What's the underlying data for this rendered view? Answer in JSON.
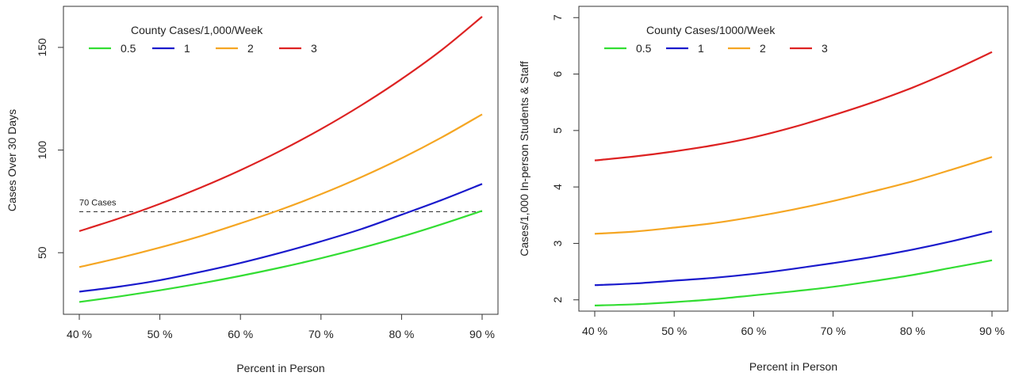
{
  "chart_data": [
    {
      "type": "line",
      "xlabel": "Percent in Person",
      "ylabel": "Cases Over 30 Days",
      "x": [
        40,
        45,
        50,
        55,
        60,
        65,
        70,
        75,
        80,
        85,
        90
      ],
      "x_tick_values": [
        40,
        50,
        60,
        70,
        80,
        90
      ],
      "x_tick_labels": [
        "40 %",
        "50 %",
        "60 %",
        "70 %",
        "80 %",
        "90 %"
      ],
      "xlim": [
        40,
        90
      ],
      "y_tick_values": [
        50,
        100,
        150
      ],
      "y_tick_labels": [
        "50",
        "100",
        "150"
      ],
      "ylim": [
        20,
        170
      ],
      "legend": {
        "title": "County Cases/1,000/Week",
        "placement": "top-left"
      },
      "series": [
        {
          "name": "0.5",
          "color": "#33dd33",
          "values": [
            26,
            28.7,
            31.7,
            35,
            38.7,
            42.8,
            47.3,
            52.3,
            57.8,
            63.9,
            70.4
          ]
        },
        {
          "name": "1",
          "color": "#1a1acc",
          "values": [
            31,
            33.5,
            36.6,
            40.6,
            45,
            50,
            55.5,
            61.5,
            68.5,
            75.7,
            83.5
          ]
        },
        {
          "name": "2",
          "color": "#f5a623",
          "values": [
            43,
            47.5,
            52.5,
            58,
            64.3,
            71,
            78.5,
            86.8,
            96,
            106.2,
            117.4
          ]
        },
        {
          "name": "3",
          "color": "#dd2222",
          "values": [
            60.5,
            66.8,
            73.8,
            81.6,
            90.2,
            99.7,
            110.2,
            121.8,
            134.6,
            148.8,
            165
          ]
        }
      ],
      "reference_line": {
        "y": 70,
        "label": "70 Cases",
        "style": "dashed"
      },
      "grid": false
    },
    {
      "type": "line",
      "xlabel": "Percent in Person",
      "ylabel": "Cases/1,000 In-person Students & Staff",
      "x": [
        40,
        45,
        50,
        55,
        60,
        65,
        70,
        75,
        80,
        85,
        90
      ],
      "x_tick_values": [
        40,
        50,
        60,
        70,
        80,
        90
      ],
      "x_tick_labels": [
        "40 %",
        "50 %",
        "60 %",
        "70 %",
        "80 %",
        "90 %"
      ],
      "xlim": [
        40,
        90
      ],
      "y_tick_values": [
        2,
        3,
        4,
        5,
        6,
        7
      ],
      "y_tick_labels": [
        "2",
        "3",
        "4",
        "5",
        "6",
        "7"
      ],
      "ylim": [
        1.8,
        7.2
      ],
      "legend": {
        "title": "County Cases/1000/Week",
        "placement": "top-left"
      },
      "series": [
        {
          "name": "0.5",
          "color": "#33dd33",
          "values": [
            1.9,
            1.92,
            1.96,
            2.01,
            2.08,
            2.15,
            2.23,
            2.33,
            2.44,
            2.57,
            2.7
          ]
        },
        {
          "name": "1",
          "color": "#1a1acc",
          "values": [
            2.26,
            2.29,
            2.34,
            2.39,
            2.46,
            2.55,
            2.65,
            2.76,
            2.89,
            3.04,
            3.21
          ]
        },
        {
          "name": "2",
          "color": "#f5a623",
          "values": [
            3.17,
            3.21,
            3.28,
            3.36,
            3.47,
            3.6,
            3.75,
            3.92,
            4.1,
            4.31,
            4.53
          ]
        },
        {
          "name": "3",
          "color": "#dd2222",
          "values": [
            4.47,
            4.54,
            4.63,
            4.74,
            4.88,
            5.06,
            5.27,
            5.5,
            5.76,
            6.06,
            6.39
          ]
        }
      ],
      "grid": false
    }
  ]
}
